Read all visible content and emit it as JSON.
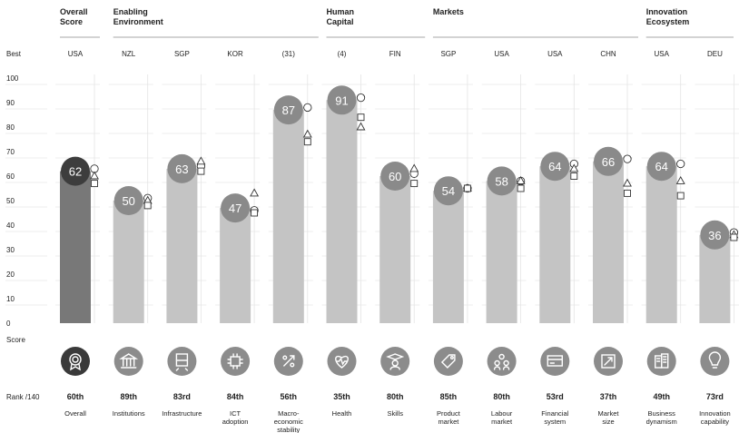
{
  "chart_data": {
    "type": "bar",
    "ylim": [
      0,
      100
    ],
    "yticks": [
      0,
      10,
      20,
      30,
      40,
      50,
      60,
      70,
      80,
      90,
      100
    ],
    "row_labels": {
      "best": "Best",
      "score": "Score",
      "rank": "Rank /140"
    },
    "groups": [
      {
        "label": "Overall Score",
        "lines": [
          "Overall",
          "Score"
        ],
        "span": [
          0,
          0
        ]
      },
      {
        "label": "Enabling Environment",
        "lines": [
          "Enabling",
          "Environment"
        ],
        "span": [
          1,
          4
        ]
      },
      {
        "label": "Human Capital",
        "lines": [
          "Human",
          "Capital"
        ],
        "span": [
          5,
          6
        ]
      },
      {
        "label": "Markets",
        "lines": [
          "Markets"
        ],
        "span": [
          7,
          10
        ]
      },
      {
        "label": "Innovation Ecosystem",
        "lines": [
          "Innovation",
          "Ecosystem"
        ],
        "span": [
          11,
          12
        ]
      }
    ],
    "legend_markers": [
      "circle",
      "triangle",
      "square"
    ],
    "pillars": [
      {
        "best": "USA",
        "value": 62,
        "rank": "60th",
        "name_lines": [
          "Overall"
        ],
        "icon": "award-icon",
        "markers": {
          "circle": 63,
          "triangle": 60,
          "square": 57
        }
      },
      {
        "best": "NZL",
        "value": 50,
        "rank": "89th",
        "name_lines": [
          "Institutions"
        ],
        "icon": "institution-icon",
        "markers": {
          "circle": 51,
          "triangle": 50,
          "square": 48
        }
      },
      {
        "best": "SGP",
        "value": 63,
        "rank": "83rd",
        "name_lines": [
          "Infrastructure"
        ],
        "icon": "train-icon",
        "markers": {
          "circle": 64,
          "triangle": 66,
          "square": 62
        }
      },
      {
        "best": "KOR",
        "value": 47,
        "rank": "84th",
        "name_lines": [
          "ICT",
          "adoption"
        ],
        "icon": "chip-icon",
        "markers": {
          "circle": 46,
          "triangle": 53,
          "square": 45
        }
      },
      {
        "best": "(31)",
        "value": 87,
        "rank": "56th",
        "name_lines": [
          "Macro-",
          "economic",
          "stability"
        ],
        "icon": "percent-icon",
        "markers": {
          "circle": 88,
          "triangle": 77,
          "square": 74
        }
      },
      {
        "best": "(4)",
        "value": 91,
        "rank": "35th",
        "name_lines": [
          "Health"
        ],
        "icon": "heart-icon",
        "markers": {
          "circle": 92,
          "triangle": 80,
          "square": 84
        }
      },
      {
        "best": "FIN",
        "value": 60,
        "rank": "80th",
        "name_lines": [
          "Skills"
        ],
        "icon": "graduate-icon",
        "markers": {
          "circle": 61,
          "triangle": 63,
          "square": 57
        }
      },
      {
        "best": "SGP",
        "value": 54,
        "rank": "85th",
        "name_lines": [
          "Product",
          "market"
        ],
        "icon": "tag-icon",
        "markers": {
          "circle": 55,
          "triangle": 55,
          "square": 55
        }
      },
      {
        "best": "USA",
        "value": 58,
        "rank": "80th",
        "name_lines": [
          "Labour",
          "market"
        ],
        "icon": "people-icon",
        "markers": {
          "circle": 58,
          "triangle": 58,
          "square": 55
        }
      },
      {
        "best": "USA",
        "value": 64,
        "rank": "53rd",
        "name_lines": [
          "Financial",
          "system"
        ],
        "icon": "card-icon",
        "markers": {
          "circle": 65,
          "triangle": 63,
          "square": 60
        }
      },
      {
        "best": "CHN",
        "value": 66,
        "rank": "37th",
        "name_lines": [
          "Market",
          "size"
        ],
        "icon": "expand-icon",
        "markers": {
          "circle": 67,
          "triangle": 57,
          "square": 53
        }
      },
      {
        "best": "USA",
        "value": 64,
        "rank": "49th",
        "name_lines": [
          "Business",
          "dynamism"
        ],
        "icon": "buildings-icon",
        "markers": {
          "circle": 65,
          "triangle": 58,
          "square": 52
        }
      },
      {
        "best": "DEU",
        "value": 36,
        "rank": "73rd",
        "name_lines": [
          "Innovation",
          "capability"
        ],
        "icon": "bulb-icon",
        "markers": {
          "circle": 37,
          "triangle": 36,
          "square": 35
        }
      }
    ],
    "colors": {
      "overall_bar": "#787878",
      "overall_circle": "#3d3d3d",
      "overall_icon": "#3a3a3a",
      "pillar_bar": "#c4c4c4",
      "pillar_circle": "#8a8a8a",
      "pillar_icon": "#8c8c8c",
      "grid": "#dcdcdc",
      "text": "#222222"
    }
  }
}
